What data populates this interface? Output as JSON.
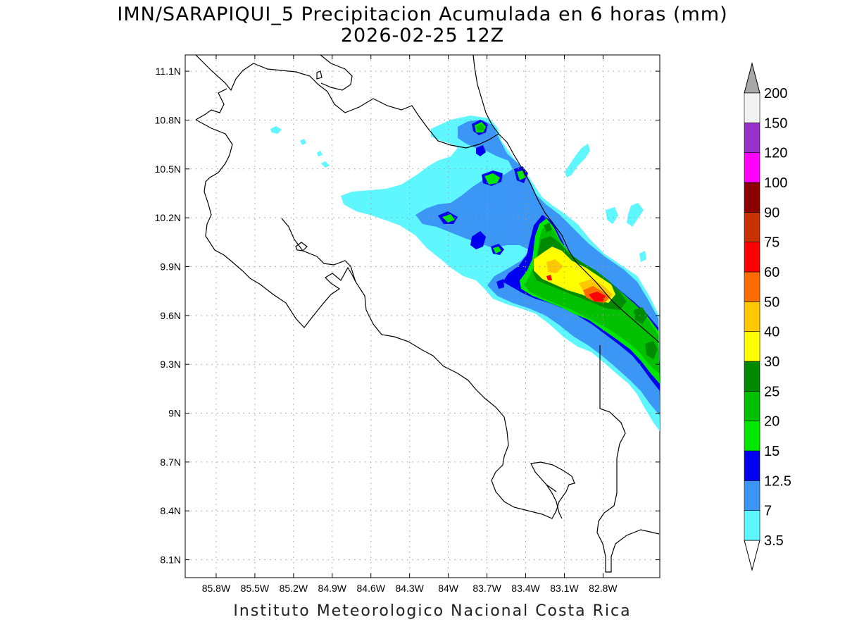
{
  "title": {
    "line1": "IMN/SARAPIQUI_5 Precipitacion Acumulada en 6 horas (mm)",
    "line2": "2026-02-25 12Z"
  },
  "footer": {
    "credit": "Instituto Meteorologico Nacional Costa Rica"
  },
  "map": {
    "lon_range": [
      -86.04,
      -82.36
    ],
    "lat_range": [
      7.99,
      11.2
    ],
    "lon_ticks": [
      {
        "value": -85.8,
        "label": "85.8W"
      },
      {
        "value": -85.5,
        "label": "85.5W"
      },
      {
        "value": -85.2,
        "label": "85.2W"
      },
      {
        "value": -84.9,
        "label": "84.9W"
      },
      {
        "value": -84.6,
        "label": "84.6W"
      },
      {
        "value": -84.3,
        "label": "84.3W"
      },
      {
        "value": -84.0,
        "label": "84W"
      },
      {
        "value": -83.7,
        "label": "83.7W"
      },
      {
        "value": -83.4,
        "label": "83.4W"
      },
      {
        "value": -83.1,
        "label": "83.1W"
      },
      {
        "value": -82.8,
        "label": "82.8W"
      }
    ],
    "lat_ticks": [
      {
        "value": 11.1,
        "label": "11.1N"
      },
      {
        "value": 10.8,
        "label": "10.8N"
      },
      {
        "value": 10.5,
        "label": "10.5N"
      },
      {
        "value": 10.2,
        "label": "10.2N"
      },
      {
        "value": 9.9,
        "label": "9.9N"
      },
      {
        "value": 9.6,
        "label": "9.6N"
      },
      {
        "value": 9.3,
        "label": "9.3N"
      },
      {
        "value": 9.0,
        "label": "9N"
      },
      {
        "value": 8.7,
        "label": "8.7N"
      },
      {
        "value": 8.4,
        "label": "8.4N"
      },
      {
        "value": 8.1,
        "label": "8.1N"
      }
    ],
    "grid": "dotted"
  },
  "colorbar": {
    "unit": "mm",
    "levels": [
      "3.5",
      "7",
      "12.5",
      "15",
      "20",
      "25",
      "30",
      "40",
      "50",
      "60",
      "75",
      "90",
      "100",
      "120",
      "150",
      "200"
    ],
    "colors": [
      "#5ef6ff",
      "#3c96f6",
      "#0000f0",
      "#00e800",
      "#00c000",
      "#008a00",
      "#ffff00",
      "#ffc800",
      "#ff6c00",
      "#ff0000",
      "#c83200",
      "#8c0000",
      "#ff00ff",
      "#9932cc",
      "#f2f2f2"
    ],
    "under_color": "#ffffff",
    "over_color": "#a8a8a8"
  },
  "precip_legend_colors": {
    "c1": "#5ef6ff",
    "c2": "#3c96f6",
    "c3": "#0000f0",
    "c4": "#00e800",
    "c5": "#00c000",
    "c6": "#008a00",
    "c7": "#ffff00",
    "c8": "#ffc800",
    "c9": "#ff6c00",
    "c10": "#ff0000"
  }
}
